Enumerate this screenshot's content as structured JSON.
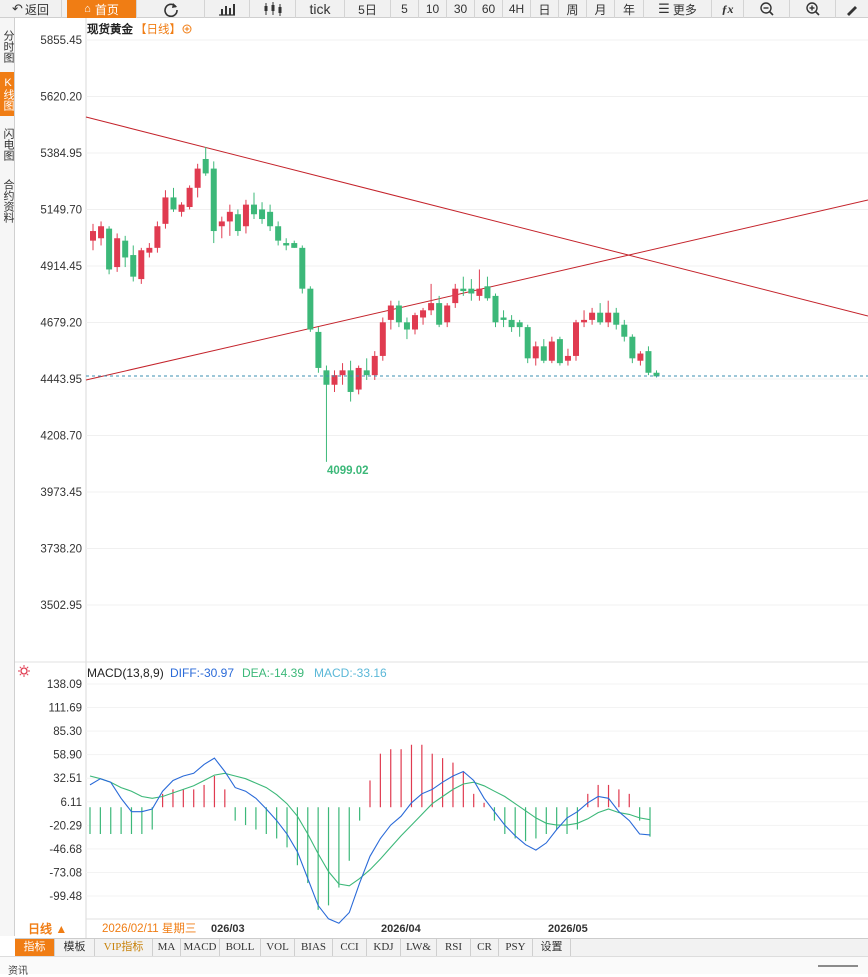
{
  "toolbar": {
    "back": "返回",
    "home": "首页",
    "tick": "tick",
    "periods": [
      "5日",
      "5",
      "10",
      "30",
      "60",
      "4H",
      "日",
      "周",
      "月",
      "年"
    ],
    "more": "更多",
    "fx": "ƒx"
  },
  "sidebar": {
    "items": [
      "分时图",
      "K线图",
      "闪电图",
      "合约资料"
    ]
  },
  "chart": {
    "title": "现货黄金",
    "period_tag": "【日线】",
    "min_label": "4099.02",
    "y_labels": [
      "5855.45",
      "5620.20",
      "5384.95",
      "5149.70",
      "4914.45",
      "4679.20",
      "4443.95",
      "4208.70",
      "3973.45",
      "3738.20",
      "3502.95"
    ],
    "price_color_up": "#e03b50",
    "price_color_down": "#3cb879"
  },
  "macd": {
    "label": "MACD(13,8,9)",
    "diff_label": "DIFF:-30.97",
    "dea_label": "DEA:-14.39",
    "macd_label": "MACD:-33.16",
    "y_labels": [
      "138.09",
      "111.69",
      "85.30",
      "58.90",
      "32.51",
      "6.11",
      "-20.29",
      "-46.68",
      "-73.08",
      "-99.48"
    ]
  },
  "xaxis": {
    "period_button": "日线 ▲",
    "cursor_date": "2026/02/11 星期三",
    "dates": [
      "026/03",
      "2026/04",
      "2026/05"
    ]
  },
  "bottom_tabs": [
    "指标",
    "模板",
    "VIP指标",
    "MA",
    "MACD",
    "BOLL",
    "VOL",
    "BIAS",
    "CCI",
    "KDJ",
    "LW&",
    "RSI",
    "CR",
    "PSY",
    "设置"
  ],
  "status": {
    "left": "资讯"
  },
  "chart_data": {
    "type": "candlestick",
    "title": "现货黄金",
    "ylim": [
      3502.95,
      5855.45
    ],
    "min_annotation": 4099.02,
    "candles": [
      {
        "o": 5020,
        "h": 5090,
        "l": 4980,
        "c": 5060
      },
      {
        "o": 5030,
        "h": 5100,
        "l": 5000,
        "c": 5080
      },
      {
        "o": 5070,
        "h": 5080,
        "l": 4880,
        "c": 4900
      },
      {
        "o": 4910,
        "h": 5050,
        "l": 4890,
        "c": 5030
      },
      {
        "o": 5020,
        "h": 5040,
        "l": 4910,
        "c": 4950
      },
      {
        "o": 4960,
        "h": 5000,
        "l": 4850,
        "c": 4870
      },
      {
        "o": 4860,
        "h": 4990,
        "l": 4840,
        "c": 4980
      },
      {
        "o": 4970,
        "h": 5010,
        "l": 4950,
        "c": 4990
      },
      {
        "o": 4990,
        "h": 5100,
        "l": 4970,
        "c": 5080
      },
      {
        "o": 5090,
        "h": 5230,
        "l": 5070,
        "c": 5200
      },
      {
        "o": 5200,
        "h": 5240,
        "l": 5140,
        "c": 5150
      },
      {
        "o": 5140,
        "h": 5180,
        "l": 5120,
        "c": 5170
      },
      {
        "o": 5160,
        "h": 5250,
        "l": 5150,
        "c": 5240
      },
      {
        "o": 5240,
        "h": 5340,
        "l": 5200,
        "c": 5320
      },
      {
        "o": 5360,
        "h": 5410,
        "l": 5290,
        "c": 5300
      },
      {
        "o": 5320,
        "h": 5350,
        "l": 5010,
        "c": 5060
      },
      {
        "o": 5080,
        "h": 5120,
        "l": 5030,
        "c": 5100
      },
      {
        "o": 5100,
        "h": 5170,
        "l": 5040,
        "c": 5140
      },
      {
        "o": 5130,
        "h": 5150,
        "l": 5040,
        "c": 5060
      },
      {
        "o": 5080,
        "h": 5190,
        "l": 5050,
        "c": 5170
      },
      {
        "o": 5170,
        "h": 5220,
        "l": 5110,
        "c": 5130
      },
      {
        "o": 5150,
        "h": 5180,
        "l": 5090,
        "c": 5110
      },
      {
        "o": 5140,
        "h": 5170,
        "l": 5060,
        "c": 5080
      },
      {
        "o": 5080,
        "h": 5100,
        "l": 5000,
        "c": 5020
      },
      {
        "o": 5010,
        "h": 5030,
        "l": 4980,
        "c": 5000
      },
      {
        "o": 5010,
        "h": 5020,
        "l": 4990,
        "c": 4990
      },
      {
        "o": 4990,
        "h": 5000,
        "l": 4800,
        "c": 4820
      },
      {
        "o": 4820,
        "h": 4830,
        "l": 4640,
        "c": 4650
      },
      {
        "o": 4640,
        "h": 4660,
        "l": 4470,
        "c": 4490
      },
      {
        "o": 4480,
        "h": 4500,
        "l": 4099,
        "c": 4420
      },
      {
        "o": 4420,
        "h": 4480,
        "l": 4390,
        "c": 4460
      },
      {
        "o": 4460,
        "h": 4510,
        "l": 4420,
        "c": 4480
      },
      {
        "o": 4480,
        "h": 4520,
        "l": 4350,
        "c": 4390
      },
      {
        "o": 4400,
        "h": 4500,
        "l": 4380,
        "c": 4490
      },
      {
        "o": 4480,
        "h": 4530,
        "l": 4440,
        "c": 4460
      },
      {
        "o": 4460,
        "h": 4560,
        "l": 4440,
        "c": 4540
      },
      {
        "o": 4540,
        "h": 4700,
        "l": 4520,
        "c": 4680
      },
      {
        "o": 4690,
        "h": 4770,
        "l": 4650,
        "c": 4750
      },
      {
        "o": 4750,
        "h": 4770,
        "l": 4660,
        "c": 4680
      },
      {
        "o": 4680,
        "h": 4700,
        "l": 4610,
        "c": 4650
      },
      {
        "o": 4650,
        "h": 4720,
        "l": 4630,
        "c": 4710
      },
      {
        "o": 4700,
        "h": 4740,
        "l": 4670,
        "c": 4730
      },
      {
        "o": 4730,
        "h": 4840,
        "l": 4710,
        "c": 4760
      },
      {
        "o": 4760,
        "h": 4790,
        "l": 4660,
        "c": 4670
      },
      {
        "o": 4680,
        "h": 4760,
        "l": 4660,
        "c": 4750
      },
      {
        "o": 4760,
        "h": 4840,
        "l": 4740,
        "c": 4820
      },
      {
        "o": 4820,
        "h": 4870,
        "l": 4790,
        "c": 4810
      },
      {
        "o": 4820,
        "h": 4860,
        "l": 4770,
        "c": 4800
      },
      {
        "o": 4790,
        "h": 4900,
        "l": 4770,
        "c": 4820
      },
      {
        "o": 4830,
        "h": 4870,
        "l": 4770,
        "c": 4780
      },
      {
        "o": 4790,
        "h": 4800,
        "l": 4660,
        "c": 4680
      },
      {
        "o": 4700,
        "h": 4730,
        "l": 4660,
        "c": 4690
      },
      {
        "o": 4690,
        "h": 4710,
        "l": 4640,
        "c": 4660
      },
      {
        "o": 4680,
        "h": 4690,
        "l": 4620,
        "c": 4660
      },
      {
        "o": 4660,
        "h": 4670,
        "l": 4510,
        "c": 4530
      },
      {
        "o": 4530,
        "h": 4600,
        "l": 4500,
        "c": 4580
      },
      {
        "o": 4580,
        "h": 4610,
        "l": 4510,
        "c": 4520
      },
      {
        "o": 4520,
        "h": 4620,
        "l": 4510,
        "c": 4600
      },
      {
        "o": 4610,
        "h": 4620,
        "l": 4500,
        "c": 4510
      },
      {
        "o": 4520,
        "h": 4570,
        "l": 4500,
        "c": 4540
      },
      {
        "o": 4540,
        "h": 4690,
        "l": 4520,
        "c": 4680
      },
      {
        "o": 4680,
        "h": 4730,
        "l": 4660,
        "c": 4690
      },
      {
        "o": 4690,
        "h": 4740,
        "l": 4670,
        "c": 4720
      },
      {
        "o": 4720,
        "h": 4760,
        "l": 4670,
        "c": 4680
      },
      {
        "o": 4680,
        "h": 4770,
        "l": 4660,
        "c": 4720
      },
      {
        "o": 4720,
        "h": 4740,
        "l": 4650,
        "c": 4670
      },
      {
        "o": 4670,
        "h": 4690,
        "l": 4600,
        "c": 4620
      },
      {
        "o": 4620,
        "h": 4630,
        "l": 4510,
        "c": 4530
      },
      {
        "o": 4520,
        "h": 4560,
        "l": 4500,
        "c": 4550
      },
      {
        "o": 4560,
        "h": 4580,
        "l": 4460,
        "c": 4470
      },
      {
        "o": 4470,
        "h": 4480,
        "l": 4450,
        "c": 4455
      }
    ],
    "macd": {
      "ylim": [
        -130,
        150
      ],
      "diff": [
        25,
        32,
        28,
        10,
        -5,
        -5,
        -2,
        18,
        30,
        35,
        38,
        48,
        55,
        40,
        22,
        18,
        10,
        -2,
        -15,
        -30,
        -50,
        -80,
        -110,
        -125,
        -130,
        -118,
        -85,
        -55,
        -35,
        -20,
        -10,
        5,
        15,
        20,
        28,
        35,
        40,
        30,
        10,
        -5,
        -20,
        -32,
        -42,
        -48,
        -40,
        -25,
        -12,
        -5,
        5,
        12,
        10,
        -5,
        -15,
        -30,
        -31
      ],
      "dea": [
        35,
        32,
        28,
        22,
        18,
        12,
        10,
        12,
        16,
        20,
        24,
        30,
        36,
        38,
        35,
        32,
        27,
        22,
        14,
        4,
        -10,
        -30,
        -52,
        -72,
        -86,
        -88,
        -80,
        -70,
        -58,
        -45,
        -32,
        -20,
        -8,
        4,
        12,
        20,
        26,
        28,
        24,
        18,
        12,
        4,
        -4,
        -12,
        -18,
        -20,
        -20,
        -18,
        -13,
        -6,
        -2,
        -6,
        -8,
        -12,
        -14
      ],
      "hist": [
        -30,
        -30,
        -30,
        -30,
        -30,
        -30,
        -25,
        15,
        20,
        20,
        20,
        25,
        35,
        20,
        -15,
        -20,
        -25,
        -30,
        -35,
        -45,
        -65,
        -85,
        -115,
        -110,
        -90,
        -60,
        -15,
        30,
        60,
        65,
        65,
        70,
        70,
        60,
        55,
        50,
        40,
        15,
        5,
        -15,
        -30,
        -35,
        -38,
        -35,
        -30,
        -25,
        -30,
        -25,
        15,
        25,
        25,
        20,
        15,
        -15,
        -33
      ]
    }
  }
}
